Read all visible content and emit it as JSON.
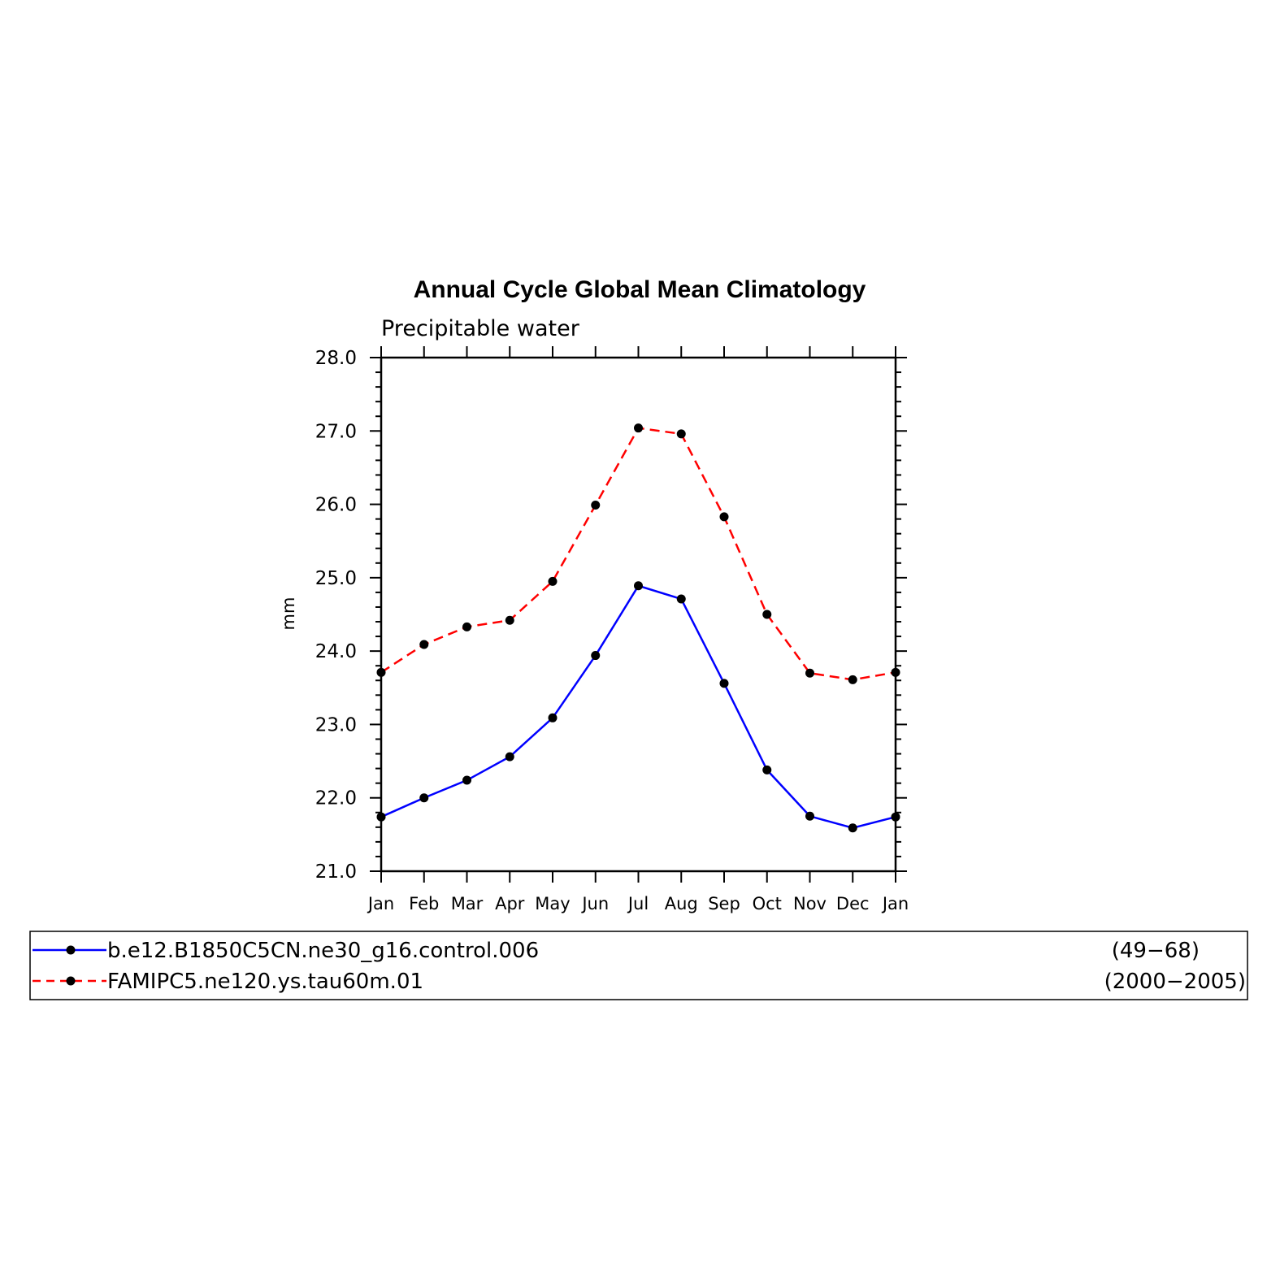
{
  "chart_data": {
    "type": "line",
    "title": "Annual Cycle Global Mean Climatology",
    "subtitle": "Precipitable water",
    "xlabel": "",
    "ylabel": "mm",
    "ylim": [
      21.0,
      28.0
    ],
    "yticks": [
      "21.0",
      "22.0",
      "23.0",
      "24.0",
      "25.0",
      "26.0",
      "27.0",
      "28.0"
    ],
    "categories": [
      "Jan",
      "Feb",
      "Mar",
      "Apr",
      "May",
      "Jun",
      "Jul",
      "Aug",
      "Sep",
      "Oct",
      "Nov",
      "Dec",
      "Jan"
    ],
    "grid": false,
    "legend_position": "bottom",
    "series": [
      {
        "name": "b.e12.B1850C5CN.ne30_g16.control.006",
        "years": "(49−68)",
        "color": "#0000ff",
        "dash": "solid",
        "marker": "filled-circle",
        "values": [
          21.74,
          22.0,
          22.24,
          22.56,
          23.09,
          23.94,
          24.89,
          24.71,
          23.56,
          22.38,
          21.75,
          21.59,
          21.74
        ]
      },
      {
        "name": "FAMIPC5.ne120.ys.tau60m.01",
        "years": "(2000−2005)",
        "color": "#ff0000",
        "dash": "dashed",
        "marker": "filled-circle",
        "values": [
          23.71,
          24.09,
          24.33,
          24.42,
          24.95,
          25.99,
          27.04,
          26.96,
          25.83,
          24.5,
          23.7,
          23.61,
          23.71
        ]
      }
    ]
  }
}
